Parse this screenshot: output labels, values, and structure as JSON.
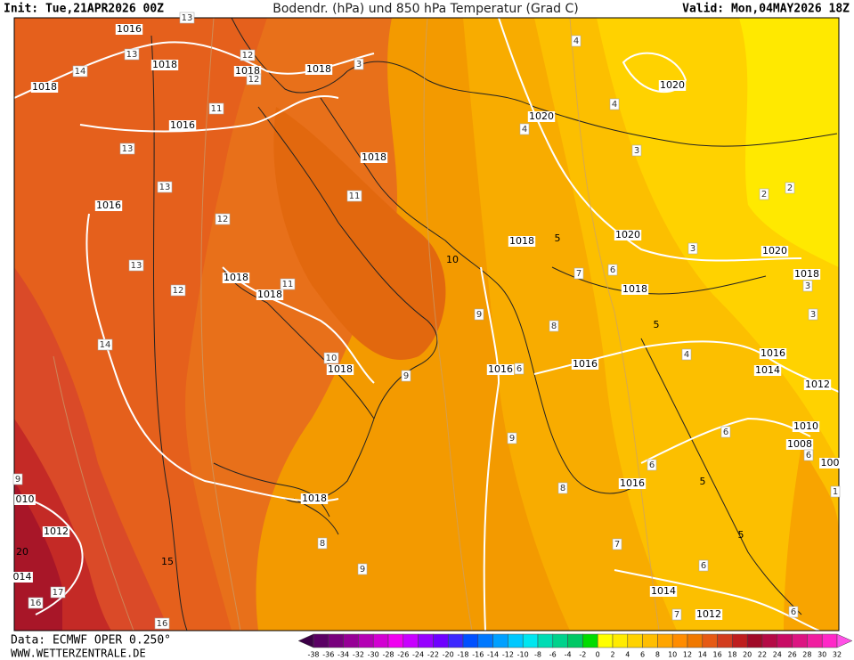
{
  "header": {
    "init": "Init: Tue,21APR2026 00Z",
    "title": "Bodendr. (hPa) und 850 hPa Temperatur (Grad C)",
    "valid": "Valid: Mon,04MAY2026 18Z"
  },
  "footer": {
    "data": "Data: ECMWF OPER 0.250°",
    "website": "WWW.WETTERZENTRALE.DE"
  },
  "map": {
    "isobar_labels": [
      "1016",
      "1018",
      "1018",
      "1018",
      "1018",
      "1016",
      "1018",
      "1016",
      "1018",
      "1018",
      "1018",
      "1020",
      "1020",
      "1020",
      "1018",
      "1020",
      "1018",
      "1018",
      "1016",
      "1016",
      "1016",
      "1014",
      "1012",
      "1010",
      "1008",
      "100",
      "1016",
      "1018",
      "1012",
      "010",
      "1014",
      "1012",
      "20",
      "014",
      "10",
      "5",
      "5",
      "5",
      "5",
      "15"
    ],
    "temperature_labels": [
      "13",
      "13",
      "14",
      "12",
      "12",
      "11",
      "13",
      "13",
      "12",
      "13",
      "12",
      "11",
      "14",
      "10",
      "9",
      "11",
      "3",
      "4",
      "4",
      "4",
      "3",
      "2",
      "2",
      "3",
      "6",
      "7",
      "3",
      "3",
      "9",
      "8",
      "4",
      "6",
      "9",
      "6",
      "6",
      "6",
      "8",
      "6",
      "7",
      "8",
      "9",
      "7",
      "6",
      "17",
      "16",
      "16",
      "9",
      "1"
    ]
  },
  "legend": {
    "ticks": [
      -38,
      -36,
      -34,
      -32,
      -30,
      -28,
      -26,
      -24,
      -22,
      -20,
      -18,
      -16,
      -14,
      -12,
      -10,
      -8,
      -6,
      -4,
      -2,
      0,
      2,
      4,
      6,
      8,
      10,
      12,
      14,
      16,
      18,
      20,
      22,
      24,
      26,
      28,
      30,
      32
    ],
    "colors": [
      "#3c0046",
      "#5a0064",
      "#78007d",
      "#960096",
      "#b400b4",
      "#d200d2",
      "#f000f0",
      "#c800ff",
      "#9600ff",
      "#6e00ff",
      "#3c28ff",
      "#0050ff",
      "#0078ff",
      "#00a0ff",
      "#00c8ff",
      "#00e6f0",
      "#00dcb4",
      "#00d28c",
      "#00c864",
      "#00dc00",
      "#ffff00",
      "#ffeb00",
      "#ffd200",
      "#ffbe00",
      "#ffa500",
      "#ff8c00",
      "#f07800",
      "#e65a14",
      "#d23c1e",
      "#be1e1e",
      "#a00a28",
      "#b40a46",
      "#c80a64",
      "#dc1482",
      "#f01ea0",
      "#ff28c8",
      "#ff50e6"
    ]
  }
}
